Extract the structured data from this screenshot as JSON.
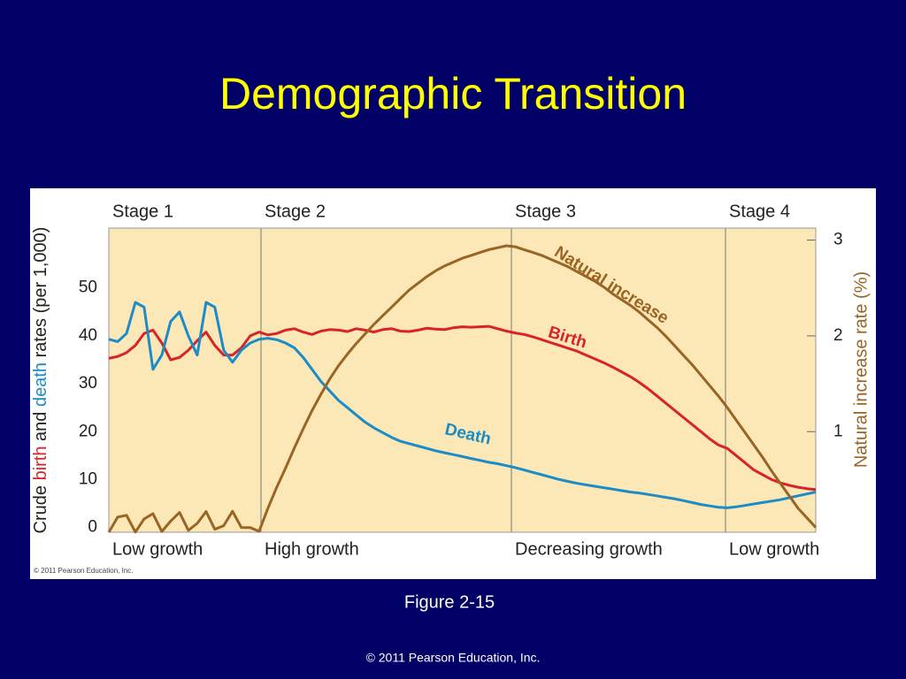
{
  "slide_title": "Demographic Transition",
  "chart_data": {
    "type": "line",
    "ylabel_parts": [
      "Crude ",
      "birth",
      " and ",
      "death",
      " rates (per 1,000)"
    ],
    "y2label": "Natural increase rate (%)",
    "ylim": [
      -1,
      62.5
    ],
    "yticks": [
      0,
      10,
      20,
      30,
      40,
      50
    ],
    "y2lim": [
      -0.05,
      3.125
    ],
    "y2ticks": [
      1,
      2,
      3
    ],
    "series": [
      {
        "name": "Birth",
        "color": "#d8232a",
        "values": [
          35.3,
          35.7,
          36.5,
          38,
          40.5,
          41.2,
          38.5,
          35,
          35.5,
          37,
          39,
          40.8,
          38,
          36,
          36,
          37.5,
          40,
          40.8,
          40.2,
          40.5,
          41.2,
          41.5,
          40.8,
          40.3,
          41,
          41.3,
          41.2,
          40.9,
          41.5,
          41.2,
          40.8,
          41.3,
          41.5,
          41,
          40.9,
          41.2,
          41.6,
          41.4,
          41.3,
          41.7,
          41.9,
          41.8,
          41.9,
          42,
          41.5,
          41,
          40.6,
          40.3,
          39.8,
          39.2,
          38.6,
          38,
          37.4,
          36.8,
          36,
          35.2,
          34.4,
          33.5,
          32.5,
          31.5,
          30.3,
          29,
          27.5,
          26,
          24.5,
          23,
          21.5,
          20,
          18.5,
          17.2,
          16.5,
          15,
          13.5,
          12,
          11,
          10,
          9.3,
          8.8,
          8.4,
          8.1,
          7.9
        ]
      },
      {
        "name": "Death",
        "color": "#1b8cc8",
        "values": [
          39.3,
          38.8,
          40.5,
          47,
          46,
          33,
          36,
          43,
          45,
          40,
          36,
          47,
          46,
          37,
          34.5,
          37,
          38.5,
          39.3,
          39.5,
          39.2,
          38.5,
          37.5,
          35.5,
          33,
          30.5,
          28.5,
          26.5,
          25,
          23.5,
          22,
          20.8,
          19.8,
          18.8,
          18,
          17.5,
          17,
          16.5,
          16,
          15.6,
          15.2,
          14.8,
          14.4,
          14,
          13.6,
          13.3,
          12.9,
          12.5,
          12,
          11.5,
          11,
          10.5,
          10,
          9.6,
          9.2,
          8.9,
          8.6,
          8.3,
          8,
          7.7,
          7.4,
          7.2,
          6.9,
          6.6,
          6.3,
          6,
          5.6,
          5.2,
          4.8,
          4.5,
          4.2,
          4.1,
          4.3,
          4.6,
          4.9,
          5.2,
          5.5,
          5.8,
          6.2,
          6.6,
          7,
          7.4
        ]
      },
      {
        "name": "Natural increase",
        "color": "#9a6424",
        "axis": "y2",
        "values": [
          -0.05,
          0.108,
          0.127,
          -0.048,
          0.089,
          0.144,
          -0.043,
          0.066,
          0.157,
          -0.03,
          0.042,
          0.166,
          -0.02,
          0.018,
          0.169,
          0,
          -0.002,
          -0.04,
          0.2,
          0.42,
          0.62,
          0.83,
          1.03,
          1.22,
          1.39,
          1.55,
          1.69,
          1.81,
          1.92,
          2.02,
          2.12,
          2.21,
          2.3,
          2.39,
          2.48,
          2.55,
          2.62,
          2.68,
          2.73,
          2.77,
          2.81,
          2.84,
          2.87,
          2.9,
          2.92,
          2.94,
          2.93,
          2.9,
          2.87,
          2.84,
          2.8,
          2.76,
          2.72,
          2.67,
          2.62,
          2.57,
          2.51,
          2.44,
          2.38,
          2.32,
          2.25,
          2.17,
          2.09,
          2,
          1.9,
          1.8,
          1.7,
          1.59,
          1.48,
          1.37,
          1.25,
          1.12,
          0.99,
          0.86,
          0.73,
          0.59,
          0.46,
          0.33,
          0.2,
          0.1,
          0
        ]
      }
    ],
    "stages": [
      {
        "name": "Stage 1",
        "growth": "Low growth"
      },
      {
        "name": "Stage 2",
        "growth": "High growth"
      },
      {
        "name": "Stage 3",
        "growth": "Decreasing growth"
      },
      {
        "name": "Stage 4",
        "growth": "Low growth"
      }
    ],
    "copyright": "© 2011 Pearson Education, Inc."
  },
  "caption": "Figure 2-15",
  "footer": "© 2011 Pearson Education, Inc."
}
